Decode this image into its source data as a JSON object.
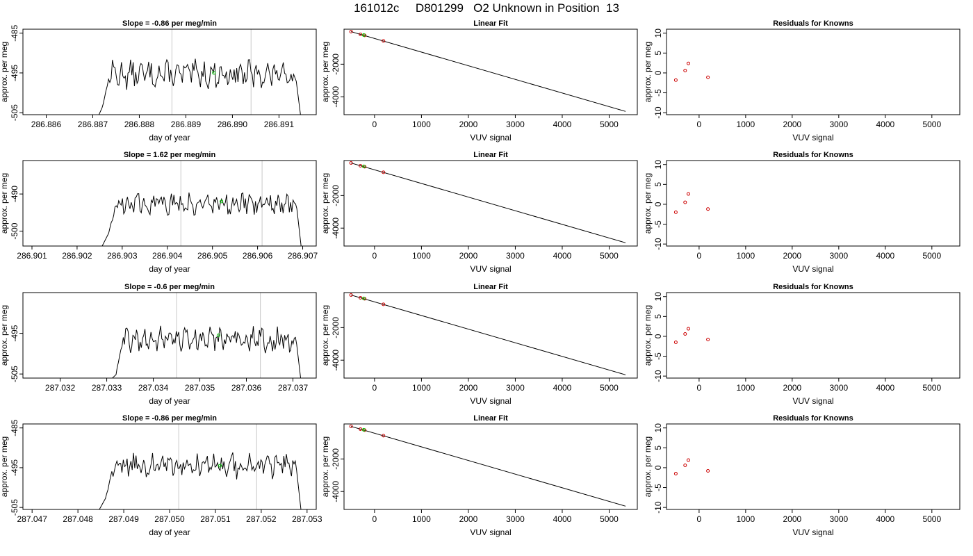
{
  "figure_title": "161012c     D801299   O2 Unknown in Position  13",
  "colors": {
    "trace": "#000000",
    "known": "#cc0000",
    "unknown": "#00cc00",
    "vline": "#c8c8c8",
    "axis": "#000000"
  },
  "chart_data": [
    {
      "type": "line",
      "title": "Slope =  -0.86  per meg/min",
      "xlabel": "day of year",
      "ylabel": "approx. per meg",
      "xlim": [
        286.8855,
        286.8918
      ],
      "ylim": [
        -505.5,
        -484
      ],
      "xticks": [
        "286.886",
        "286.887",
        "286.888",
        "286.889",
        "286.890",
        "286.891"
      ],
      "xtick_values": [
        286.886,
        286.887,
        286.888,
        286.889,
        286.89,
        286.891
      ],
      "yticks": [
        "-505",
        "-495",
        "-485"
      ],
      "ytick_values": [
        -505,
        -495,
        -485
      ],
      "start_x": 286.887,
      "end_x": 286.8915,
      "plateau_start_x": 286.8872,
      "base_level": -495.3,
      "noise_amplitude": 2.5,
      "vlines": [
        286.8887,
        286.8904
      ],
      "unknown_point": [
        286.8896,
        -495
      ]
    },
    {
      "type": "scatter",
      "title": "Linear Fit",
      "xlabel": "VUV signal",
      "ylabel": "approx. per meg",
      "xlim": [
        -650,
        5600
      ],
      "ylim": [
        -5100,
        150
      ],
      "xticks": [
        "0",
        "1000",
        "2000",
        "3000",
        "4000",
        "5000"
      ],
      "xtick_values": [
        0,
        1000,
        2000,
        3000,
        4000,
        5000
      ],
      "yticks": [
        "-4000",
        "-2000"
      ],
      "ytick_values": [
        -4000,
        -2000
      ],
      "fit_line": [
        [
          -500,
          0
        ],
        [
          5350,
          -4900
        ]
      ],
      "known_points": [
        [
          -500,
          0
        ],
        [
          -300,
          -170
        ],
        [
          -210,
          -230
        ],
        [
          190,
          -570
        ]
      ],
      "unknown_point": [
        -230,
        -210
      ]
    },
    {
      "type": "scatter",
      "title": "Residuals for Knowns",
      "xlabel": "VUV signal",
      "ylabel": "approx. per meg",
      "xlim": [
        -700,
        5600
      ],
      "ylim": [
        -10.5,
        11
      ],
      "xticks": [
        "0",
        "1000",
        "2000",
        "3000",
        "4000",
        "5000"
      ],
      "xtick_values": [
        0,
        1000,
        2000,
        3000,
        4000,
        5000
      ],
      "yticks": [
        "-10",
        "-5",
        "0",
        "5",
        "10"
      ],
      "ytick_values": [
        -10,
        -5,
        0,
        5,
        10
      ],
      "points": [
        [
          -500,
          -1.8
        ],
        [
          -300,
          0.6
        ],
        [
          -230,
          2.4
        ],
        [
          190,
          -1.1
        ]
      ]
    },
    {
      "type": "line",
      "title": "Slope =  1.62  per meg/min",
      "xlabel": "day of year",
      "ylabel": "approx. per meg",
      "xlim": [
        286.9008,
        286.9073
      ],
      "ylim": [
        -504,
        -481
      ],
      "xticks": [
        "286.901",
        "286.902",
        "286.903",
        "286.904",
        "286.905",
        "286.906",
        "286.907"
      ],
      "xtick_values": [
        286.901,
        286.902,
        286.903,
        286.904,
        286.905,
        286.906,
        286.907
      ],
      "yticks": [
        "-500",
        "-490"
      ],
      "ytick_values": [
        -500,
        -490
      ],
      "start_x": 286.9024,
      "end_x": 286.907,
      "plateau_start_x": 286.9027,
      "base_level": -492.5,
      "noise_amplitude": 2.2,
      "vlines": [
        286.9043,
        286.9061
      ],
      "unknown_point": [
        286.9052,
        -492
      ]
    },
    {
      "type": "scatter",
      "title": "Linear Fit",
      "xlabel": "VUV signal",
      "ylabel": "approx. per meg",
      "xlim": [
        -650,
        5600
      ],
      "ylim": [
        -5100,
        150
      ],
      "xticks": [
        "0",
        "1000",
        "2000",
        "3000",
        "4000",
        "5000"
      ],
      "xtick_values": [
        0,
        1000,
        2000,
        3000,
        4000,
        5000
      ],
      "yticks": [
        "-4000",
        "-2000"
      ],
      "ytick_values": [
        -4000,
        -2000
      ],
      "fit_line": [
        [
          -500,
          0
        ],
        [
          5350,
          -4900
        ]
      ],
      "known_points": [
        [
          -500,
          0
        ],
        [
          -300,
          -170
        ],
        [
          -210,
          -230
        ],
        [
          190,
          -570
        ]
      ],
      "unknown_point": [
        -230,
        -210
      ]
    },
    {
      "type": "scatter",
      "title": "Residuals for Knowns",
      "xlabel": "VUV signal",
      "ylabel": "approx. per meg",
      "xlim": [
        -700,
        5600
      ],
      "ylim": [
        -10.5,
        11
      ],
      "xticks": [
        "0",
        "1000",
        "2000",
        "3000",
        "4000",
        "5000"
      ],
      "xtick_values": [
        0,
        1000,
        2000,
        3000,
        4000,
        5000
      ],
      "yticks": [
        "-10",
        "-5",
        "0",
        "5",
        "10"
      ],
      "ytick_values": [
        -10,
        -5,
        0,
        5,
        10
      ],
      "points": [
        [
          -500,
          -2.0
        ],
        [
          -300,
          0.5
        ],
        [
          -230,
          2.6
        ],
        [
          190,
          -1.2
        ]
      ]
    },
    {
      "type": "line",
      "title": "Slope =  -0.6  per meg/min",
      "xlabel": "day of year",
      "ylabel": "approx. per meg",
      "xlim": [
        287.0312,
        287.0375
      ],
      "ylim": [
        -506,
        -485
      ],
      "xticks": [
        "287.032",
        "287.033",
        "287.034",
        "287.035",
        "287.036",
        "287.037"
      ],
      "xtick_values": [
        287.032,
        287.033,
        287.034,
        287.035,
        287.036,
        287.037
      ],
      "yticks": [
        "-505",
        "-495"
      ],
      "ytick_values": [
        -505,
        -495
      ],
      "start_x": 287.0328,
      "end_x": 287.0372,
      "plateau_start_x": 287.0332,
      "base_level": -496.5,
      "noise_amplitude": 2.2,
      "vlines": [
        287.0345,
        287.0363
      ],
      "unknown_point": [
        287.0354,
        -495.5
      ]
    },
    {
      "type": "scatter",
      "title": "Linear Fit",
      "xlabel": "VUV signal",
      "ylabel": "approx. per meg",
      "xlim": [
        -650,
        5600
      ],
      "ylim": [
        -5100,
        150
      ],
      "xticks": [
        "0",
        "1000",
        "2000",
        "3000",
        "4000",
        "5000"
      ],
      "xtick_values": [
        0,
        1000,
        2000,
        3000,
        4000,
        5000
      ],
      "yticks": [
        "-4000",
        "-2000"
      ],
      "ytick_values": [
        -4000,
        -2000
      ],
      "fit_line": [
        [
          -500,
          0
        ],
        [
          5350,
          -4900
        ]
      ],
      "known_points": [
        [
          -500,
          0
        ],
        [
          -300,
          -170
        ],
        [
          -210,
          -230
        ],
        [
          190,
          -570
        ]
      ],
      "unknown_point": [
        -230,
        -210
      ]
    },
    {
      "type": "scatter",
      "title": "Residuals for Knowns",
      "xlabel": "VUV signal",
      "ylabel": "approx. per meg",
      "xlim": [
        -700,
        5600
      ],
      "ylim": [
        -10.5,
        11
      ],
      "xticks": [
        "0",
        "1000",
        "2000",
        "3000",
        "4000",
        "5000"
      ],
      "xtick_values": [
        0,
        1000,
        2000,
        3000,
        4000,
        5000
      ],
      "yticks": [
        "-10",
        "-5",
        "0",
        "5",
        "10"
      ],
      "ytick_values": [
        -10,
        -5,
        0,
        5,
        10
      ],
      "points": [
        [
          -500,
          -1.5
        ],
        [
          -300,
          0.6
        ],
        [
          -230,
          1.9
        ],
        [
          190,
          -0.8
        ]
      ]
    },
    {
      "type": "line",
      "title": "Slope =  -0.86  per meg/min",
      "xlabel": "day of year",
      "ylabel": "approx. per meg",
      "xlim": [
        287.0468,
        287.0532
      ],
      "ylim": [
        -505.5,
        -484
      ],
      "xticks": [
        "287.047",
        "287.048",
        "287.049",
        "287.050",
        "287.051",
        "287.052",
        "287.053"
      ],
      "xtick_values": [
        287.047,
        287.048,
        287.049,
        287.05,
        287.051,
        287.052,
        287.053
      ],
      "yticks": [
        "-505",
        "-495",
        "-485"
      ],
      "ytick_values": [
        -505,
        -495,
        -485
      ],
      "start_x": 287.0483,
      "end_x": 287.0529,
      "plateau_start_x": 287.0486,
      "base_level": -494.5,
      "noise_amplitude": 2.2,
      "vlines": [
        287.0502,
        287.0519
      ],
      "unknown_point": [
        287.0511,
        -494.5
      ]
    },
    {
      "type": "scatter",
      "title": "Linear Fit",
      "xlabel": "VUV signal",
      "ylabel": "approx. per meg",
      "xlim": [
        -650,
        5600
      ],
      "ylim": [
        -5100,
        150
      ],
      "xticks": [
        "0",
        "1000",
        "2000",
        "3000",
        "4000",
        "5000"
      ],
      "xtick_values": [
        0,
        1000,
        2000,
        3000,
        4000,
        5000
      ],
      "yticks": [
        "-4000",
        "-2000"
      ],
      "ytick_values": [
        -4000,
        -2000
      ],
      "fit_line": [
        [
          -500,
          0
        ],
        [
          5350,
          -4900
        ]
      ],
      "known_points": [
        [
          -500,
          0
        ],
        [
          -300,
          -170
        ],
        [
          -210,
          -230
        ],
        [
          190,
          -570
        ]
      ],
      "unknown_point": [
        -230,
        -210
      ]
    },
    {
      "type": "scatter",
      "title": "Residuals for Knowns",
      "xlabel": "VUV signal",
      "ylabel": "approx. per meg",
      "xlim": [
        -700,
        5600
      ],
      "ylim": [
        -10.5,
        11
      ],
      "xticks": [
        "0",
        "1000",
        "2000",
        "3000",
        "4000",
        "5000"
      ],
      "xtick_values": [
        0,
        1000,
        2000,
        3000,
        4000,
        5000
      ],
      "yticks": [
        "-10",
        "-5",
        "0",
        "5",
        "10"
      ],
      "ytick_values": [
        -10,
        -5,
        0,
        5,
        10
      ],
      "points": [
        [
          -500,
          -1.5
        ],
        [
          -300,
          0.6
        ],
        [
          -230,
          1.9
        ],
        [
          190,
          -0.8
        ]
      ]
    }
  ]
}
